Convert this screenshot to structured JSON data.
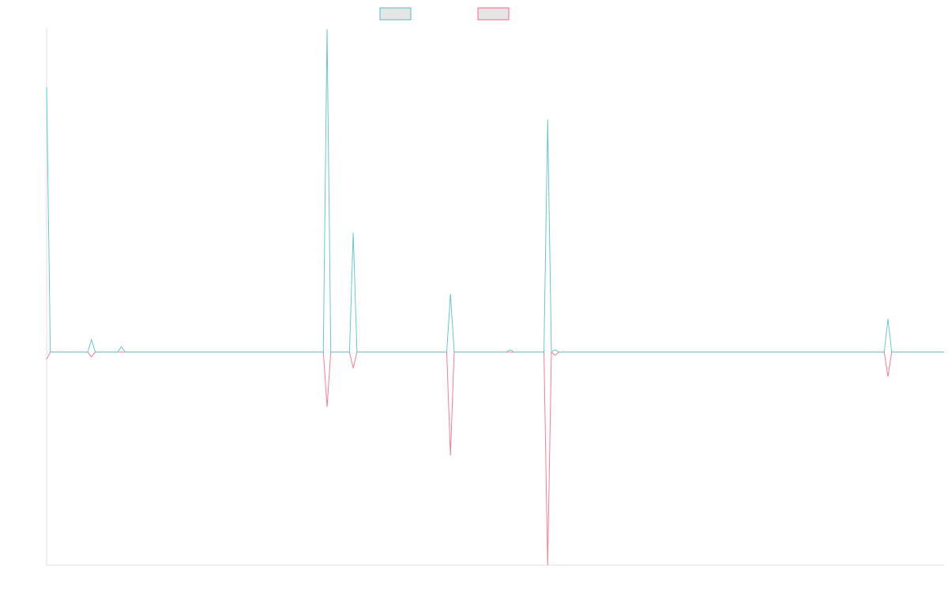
{
  "chart_data": {
    "type": "line",
    "title": "",
    "xlabel": "",
    "ylabel": "",
    "point_count": 241,
    "ylim": [
      -66,
      100
    ],
    "grid": false,
    "legend": "top",
    "series": [
      {
        "color": "#4bc0c0",
        "legend_fill": "#e5e5e5",
        "points": [
          [
            0,
            82
          ],
          [
            12,
            3.9
          ],
          [
            20,
            1.7
          ],
          [
            75,
            100
          ],
          [
            82,
            37
          ],
          [
            108,
            18
          ],
          [
            124,
            0.7
          ],
          [
            134,
            72
          ],
          [
            136,
            0.7
          ],
          [
            225,
            10.3
          ]
        ]
      },
      {
        "color": "#ff6384",
        "legend_fill": "#e5e5e5",
        "points": [
          [
            0,
            -2.2
          ],
          [
            12,
            -1.5
          ],
          [
            75,
            -17
          ],
          [
            82,
            -5
          ],
          [
            108,
            -32
          ],
          [
            134,
            -66
          ],
          [
            136,
            -1
          ],
          [
            225,
            -7.6
          ]
        ]
      }
    ],
    "axis_color": "#e0e0e0"
  }
}
